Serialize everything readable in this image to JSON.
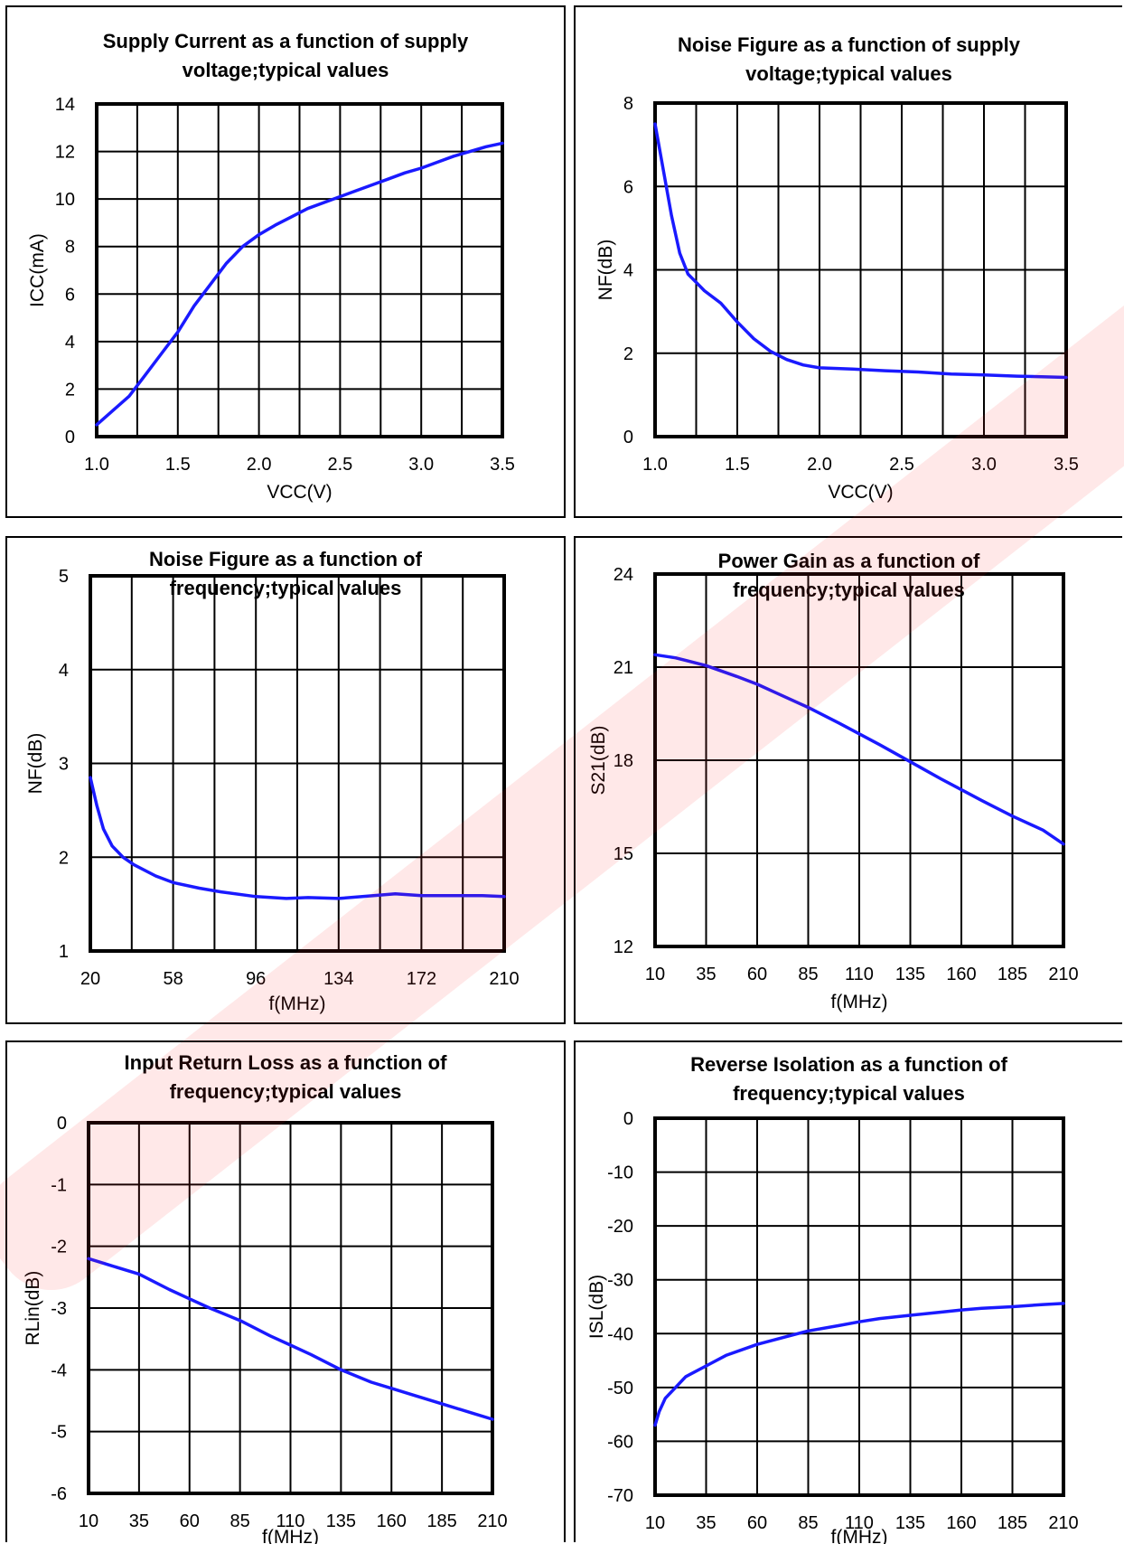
{
  "charts": [
    {
      "id": "c1",
      "title_line1": "Supply Current as a function of supply",
      "title_line2": "voltage;typical values",
      "chart_data": {
        "type": "line",
        "xlabel": "VCC(V)",
        "ylabel": "ICC(mA)",
        "xlim": [
          1.0,
          3.5
        ],
        "ylim": [
          0,
          14
        ],
        "xticks": [
          "1.0",
          "1.5",
          "2.0",
          "2.5",
          "3.0",
          "3.5"
        ],
        "yticks": [
          "0",
          "2",
          "4",
          "6",
          "8",
          "10",
          "12",
          "14"
        ],
        "grid": true,
        "series": [
          {
            "color": "#1a1aff",
            "x": [
              1.0,
              1.1,
              1.2,
              1.3,
              1.4,
              1.5,
              1.6,
              1.7,
              1.8,
              1.9,
              2.0,
              2.1,
              2.2,
              2.3,
              2.4,
              2.5,
              2.6,
              2.7,
              2.8,
              2.9,
              3.0,
              3.1,
              3.2,
              3.3,
              3.4,
              3.5
            ],
            "y": [
              0.5,
              1.1,
              1.7,
              2.6,
              3.5,
              4.4,
              5.5,
              6.4,
              7.3,
              8.0,
              8.5,
              8.9,
              9.25,
              9.6,
              9.85,
              10.1,
              10.35,
              10.6,
              10.85,
              11.1,
              11.3,
              11.55,
              11.8,
              12.0,
              12.2,
              12.35
            ]
          }
        ]
      }
    },
    {
      "id": "c2",
      "title_line1": "Noise Figure as a function of supply",
      "title_line2": "voltage;typical values",
      "chart_data": {
        "type": "line",
        "xlabel": "VCC(V)",
        "ylabel": "NF(dB)",
        "xlim": [
          1.0,
          3.5
        ],
        "ylim": [
          0,
          8
        ],
        "xticks": [
          "1.0",
          "1.5",
          "2.0",
          "2.5",
          "3.0",
          "3.5"
        ],
        "yticks": [
          "0",
          "2",
          "4",
          "6",
          "8"
        ],
        "grid": true,
        "series": [
          {
            "color": "#1a1aff",
            "x": [
              1.0,
              1.05,
              1.1,
              1.15,
              1.2,
              1.25,
              1.3,
              1.4,
              1.5,
              1.6,
              1.7,
              1.8,
              1.9,
              2.0,
              2.2,
              2.4,
              2.6,
              2.8,
              3.0,
              3.2,
              3.4,
              3.5
            ],
            "y": [
              7.5,
              6.4,
              5.3,
              4.4,
              3.9,
              3.7,
              3.5,
              3.2,
              2.75,
              2.35,
              2.05,
              1.85,
              1.72,
              1.65,
              1.62,
              1.58,
              1.55,
              1.5,
              1.48,
              1.45,
              1.43,
              1.42
            ]
          }
        ]
      }
    },
    {
      "id": "c3",
      "title_line1": "Noise Figure as a function of",
      "title_line2": "frequency;typical values",
      "chart_data": {
        "type": "line",
        "xlabel": "f(MHz)",
        "ylabel": "NF(dB)",
        "xlim": [
          20,
          210
        ],
        "ylim": [
          1,
          5
        ],
        "xticks": [
          "20",
          "58",
          "96",
          "134",
          "172",
          "210"
        ],
        "yticks": [
          "1",
          "2",
          "3",
          "4",
          "5"
        ],
        "grid": true,
        "series": [
          {
            "color": "#1a1aff",
            "x": [
              20,
              23,
              26,
              30,
              35,
              40,
              50,
              58,
              70,
              80,
              96,
              110,
              120,
              134,
              150,
              160,
              172,
              185,
              200,
              210
            ],
            "y": [
              2.85,
              2.55,
              2.3,
              2.12,
              2.0,
              1.92,
              1.8,
              1.73,
              1.67,
              1.63,
              1.58,
              1.56,
              1.57,
              1.56,
              1.59,
              1.61,
              1.59,
              1.59,
              1.59,
              1.58
            ]
          }
        ]
      }
    },
    {
      "id": "c4",
      "title_line1": "Power Gain as a function of",
      "title_line2": "frequency;typical values",
      "chart_data": {
        "type": "line",
        "xlabel": "f(MHz)",
        "ylabel": "S21(dB)",
        "xlim": [
          10,
          210
        ],
        "ylim": [
          12,
          24
        ],
        "xticks": [
          "10",
          "35",
          "60",
          "85",
          "110",
          "135",
          "160",
          "185",
          "210"
        ],
        "yticks": [
          "12",
          "15",
          "18",
          "21",
          "24"
        ],
        "grid": true,
        "series": [
          {
            "color": "#1a1aff",
            "x": [
              10,
              20,
              35,
              50,
              60,
              70,
              85,
              100,
              110,
              120,
              135,
              150,
              160,
              170,
              185,
              200,
              210
            ],
            "y": [
              21.4,
              21.3,
              21.05,
              20.7,
              20.45,
              20.15,
              19.7,
              19.2,
              18.85,
              18.5,
              17.95,
              17.4,
              17.05,
              16.7,
              16.2,
              15.75,
              15.3
            ]
          }
        ]
      }
    },
    {
      "id": "c5",
      "title_line1": "Input Return Loss as a function of",
      "title_line2": "frequency;typical values",
      "chart_data": {
        "type": "line",
        "xlabel": "f(MHz)",
        "ylabel": "RLin(dB)",
        "xlim": [
          10,
          210
        ],
        "ylim": [
          -6,
          0
        ],
        "xticks": [
          "10",
          "35",
          "60",
          "85",
          "110",
          "135",
          "160",
          "185",
          "210"
        ],
        "yticks": [
          "-6",
          "-5",
          "-4",
          "-3",
          "-2",
          "-1",
          "0"
        ],
        "grid": true,
        "series": [
          {
            "color": "#1a1aff",
            "x": [
              10,
              20,
              35,
              50,
              60,
              70,
              85,
              100,
              110,
              120,
              135,
              150,
              160,
              170,
              185,
              200,
              210
            ],
            "y": [
              -2.2,
              -2.3,
              -2.45,
              -2.7,
              -2.85,
              -3.0,
              -3.2,
              -3.45,
              -3.6,
              -3.75,
              -4.0,
              -4.2,
              -4.3,
              -4.4,
              -4.55,
              -4.7,
              -4.8
            ]
          }
        ]
      }
    },
    {
      "id": "c6",
      "title_line1": "Reverse Isolation as a function of",
      "title_line2": "frequency;typical values",
      "chart_data": {
        "type": "line",
        "xlabel": "f(MHz)",
        "ylabel": "ISL(dB)",
        "xlim": [
          10,
          210
        ],
        "ylim": [
          -70,
          0
        ],
        "xticks": [
          "10",
          "35",
          "60",
          "85",
          "110",
          "135",
          "160",
          "185",
          "210"
        ],
        "yticks": [
          "-70",
          "-60",
          "-50",
          "-40",
          "-30",
          "-20",
          "-10",
          "0"
        ],
        "grid": true,
        "series": [
          {
            "color": "#1a1aff",
            "x": [
              10,
              12,
              15,
              20,
              25,
              35,
              45,
              60,
              70,
              85,
              100,
              110,
              120,
              135,
              150,
              160,
              170,
              185,
              200,
              210
            ],
            "y": [
              -57,
              -54.5,
              -52,
              -50,
              -48,
              -46,
              -44,
              -42,
              -41,
              -39.5,
              -38.5,
              -37.8,
              -37.2,
              -36.6,
              -36,
              -35.6,
              -35.3,
              -35,
              -34.6,
              -34.4
            ]
          }
        ]
      }
    }
  ]
}
